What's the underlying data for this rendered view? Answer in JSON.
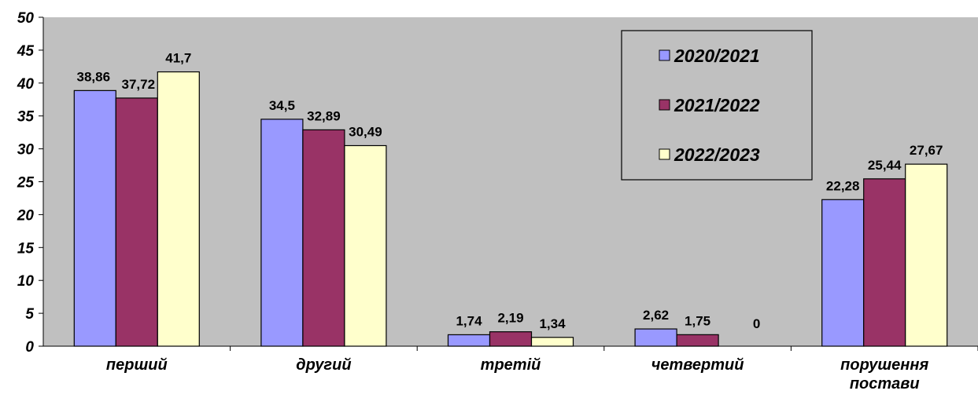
{
  "chart_data": {
    "type": "bar",
    "categories": [
      "перший",
      "другий",
      "третій",
      "четвертий",
      [
        "порушення",
        "постави"
      ]
    ],
    "series": [
      {
        "name": "2020/2021",
        "color": "#9999ff",
        "values": [
          38.86,
          34.5,
          1.74,
          2.62,
          22.28
        ],
        "labels": [
          "38,86",
          "34,5",
          "1,74",
          "2,62",
          "22,28"
        ]
      },
      {
        "name": "2021/2022",
        "color": "#993366",
        "values": [
          37.72,
          32.89,
          2.19,
          1.75,
          25.44
        ],
        "labels": [
          "37,72",
          "32,89",
          "2,19",
          "1,75",
          "25,44"
        ]
      },
      {
        "name": "2022/2023",
        "color": "#ffffcc",
        "values": [
          41.7,
          30.49,
          1.34,
          0,
          27.67
        ],
        "labels": [
          "41,7",
          "30,49",
          "1,34",
          "0",
          "27,67"
        ]
      }
    ],
    "ylim": [
      0,
      50
    ],
    "yticks": [
      0,
      5,
      10,
      15,
      20,
      25,
      30,
      35,
      40,
      45,
      50
    ],
    "legend_position": "top-right",
    "plot_background": "#c0c0c0",
    "grid": false
  }
}
